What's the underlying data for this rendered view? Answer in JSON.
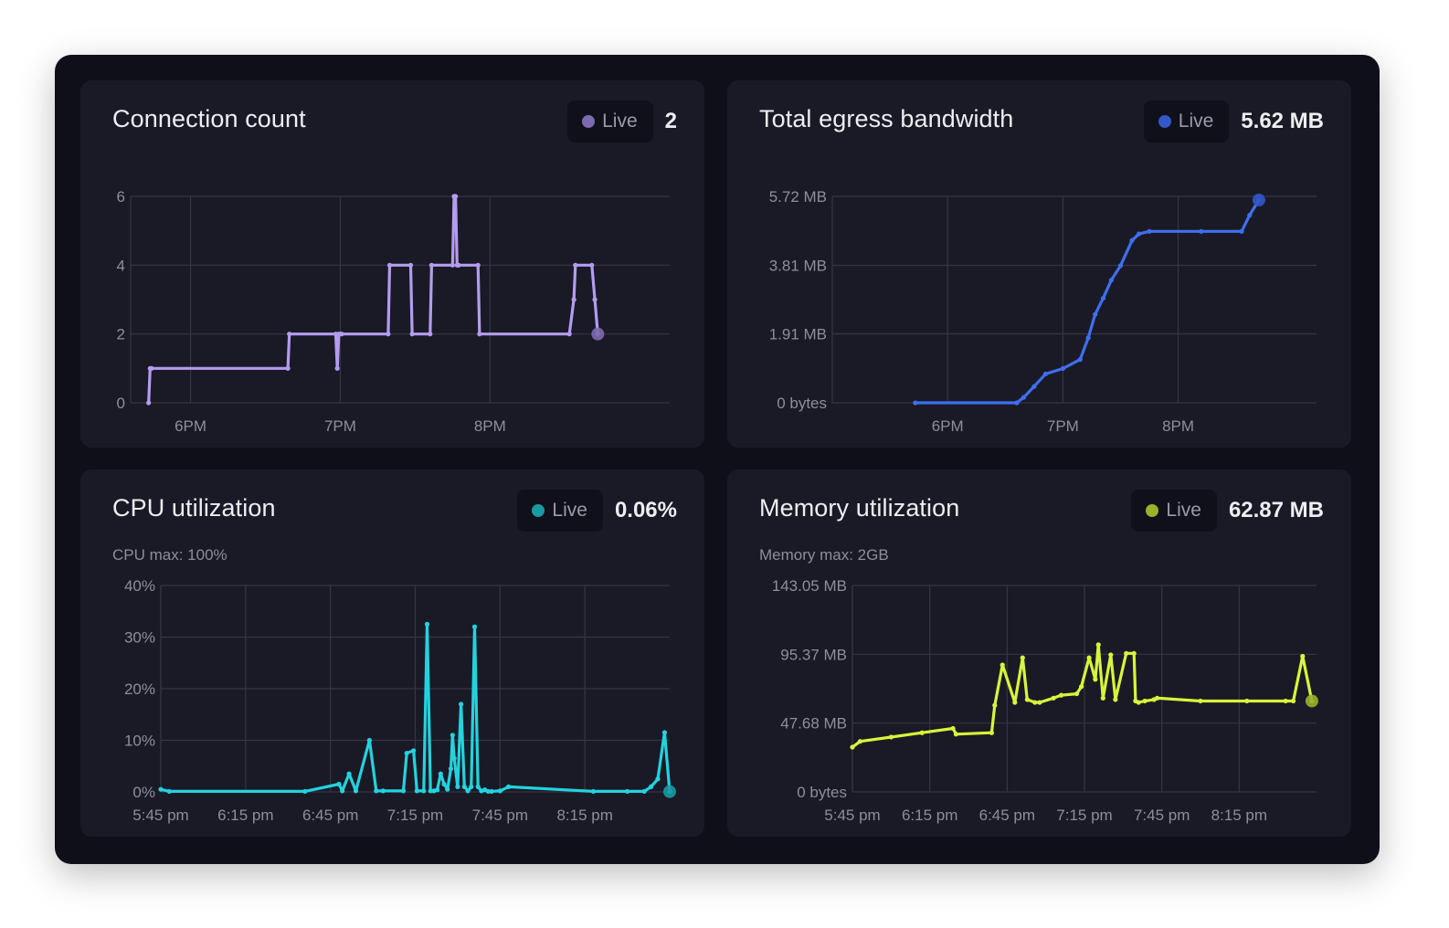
{
  "live_label": "Live",
  "chart_data": [
    {
      "type": "line",
      "title": "Connection count",
      "current_value": "2",
      "color": "#b49cf0",
      "dot_color": "#7d6bb0",
      "subtitle": "",
      "ylim": [
        0,
        6
      ],
      "yticks": [
        {
          "v": 0,
          "label": "0"
        },
        {
          "v": 2,
          "label": "2"
        },
        {
          "v": 4,
          "label": "4"
        },
        {
          "v": 6,
          "label": "6"
        }
      ],
      "xlim": [
        17.6,
        21.2
      ],
      "xticks": [
        {
          "v": 18,
          "label": "6PM"
        },
        {
          "v": 19,
          "label": "7PM"
        },
        {
          "v": 20,
          "label": "8PM"
        }
      ],
      "x": [
        17.72,
        17.73,
        17.74,
        18.65,
        18.66,
        18.97,
        18.98,
        18.99,
        19.0,
        19.01,
        19.32,
        19.33,
        19.47,
        19.48,
        19.6,
        19.61,
        19.75,
        19.76,
        19.77,
        19.78,
        19.79,
        19.92,
        19.93,
        20.53,
        20.56,
        20.57,
        20.68,
        20.7,
        20.72
      ],
      "y": [
        0,
        1,
        1,
        1,
        2,
        2,
        1,
        2,
        2,
        2,
        2,
        4,
        4,
        2,
        2,
        4,
        4,
        6,
        6,
        4,
        4,
        4,
        2,
        2,
        3,
        4,
        4,
        3,
        2
      ]
    },
    {
      "type": "line",
      "title": "Total egress bandwidth",
      "current_value": "5.62 MB",
      "color": "#3f6ff0",
      "dot_color": "#3356c8",
      "subtitle": "",
      "ylim": [
        0,
        5.72
      ],
      "yticks": [
        {
          "v": 0,
          "label": "0 bytes"
        },
        {
          "v": 1.91,
          "label": "1.91 MB"
        },
        {
          "v": 3.81,
          "label": "3.81 MB"
        },
        {
          "v": 5.72,
          "label": "5.72 MB"
        }
      ],
      "xlim": [
        17.0,
        21.2
      ],
      "xticks": [
        {
          "v": 18,
          "label": "6PM"
        },
        {
          "v": 19,
          "label": "7PM"
        },
        {
          "v": 20,
          "label": "8PM"
        }
      ],
      "x": [
        17.72,
        18.6,
        18.66,
        18.75,
        18.85,
        19.0,
        19.15,
        19.22,
        19.28,
        19.35,
        19.42,
        19.5,
        19.6,
        19.66,
        19.75,
        20.2,
        20.55,
        20.62,
        20.7
      ],
      "y": [
        0,
        0,
        0.15,
        0.45,
        0.8,
        0.95,
        1.2,
        1.8,
        2.45,
        2.9,
        3.4,
        3.8,
        4.5,
        4.68,
        4.75,
        4.75,
        4.75,
        5.2,
        5.62
      ]
    },
    {
      "type": "line",
      "title": "CPU utilization",
      "current_value": "0.06%",
      "color": "#22d3df",
      "dot_color": "#1a9aa3",
      "subtitle": "CPU max: 100%",
      "ylim": [
        0,
        40
      ],
      "yticks": [
        {
          "v": 0,
          "label": "0%"
        },
        {
          "v": 10,
          "label": "10%"
        },
        {
          "v": 20,
          "label": "20%"
        },
        {
          "v": 30,
          "label": "30%"
        },
        {
          "v": 40,
          "label": "40%"
        }
      ],
      "xlim": [
        17.75,
        20.75
      ],
      "xticks": [
        {
          "v": 17.75,
          "label": "5:45 pm"
        },
        {
          "v": 18.25,
          "label": "6:15 pm"
        },
        {
          "v": 18.75,
          "label": "6:45 pm"
        },
        {
          "v": 19.25,
          "label": "7:15 pm"
        },
        {
          "v": 19.75,
          "label": "7:45 pm"
        },
        {
          "v": 20.25,
          "label": "8:15 pm"
        }
      ],
      "x": [
        17.75,
        17.8,
        18.6,
        18.8,
        18.82,
        18.86,
        18.9,
        18.98,
        19.02,
        19.06,
        19.18,
        19.2,
        19.24,
        19.26,
        19.3,
        19.32,
        19.34,
        19.36,
        19.38,
        19.4,
        19.42,
        19.44,
        19.46,
        19.47,
        19.48,
        19.5,
        19.52,
        19.54,
        19.56,
        19.58,
        19.6,
        19.62,
        19.64,
        19.66,
        19.68,
        19.7,
        19.75,
        19.8,
        20.3,
        20.5,
        20.6,
        20.64,
        20.68,
        20.72,
        20.75
      ],
      "y": [
        0.5,
        0.1,
        0.1,
        1.5,
        0.2,
        3.5,
        0.2,
        10,
        0.2,
        0.2,
        0.2,
        7.5,
        8,
        0.2,
        0.2,
        32.5,
        0.2,
        0.2,
        0.4,
        3.5,
        1.5,
        0.5,
        4.5,
        11,
        6.5,
        1,
        17,
        1,
        0.2,
        1,
        32,
        1,
        0.2,
        0.4,
        0.1,
        0.1,
        0.2,
        1,
        0.1,
        0.1,
        0.1,
        1,
        2.5,
        11.5,
        0.06
      ]
    },
    {
      "type": "line",
      "title": "Memory utilization",
      "current_value": "62.87 MB",
      "color": "#d9f53a",
      "dot_color": "#9ab12a",
      "subtitle": "Memory max: 2GB",
      "ylim": [
        0,
        143.05
      ],
      "yticks": [
        {
          "v": 0,
          "label": "0 bytes"
        },
        {
          "v": 47.68,
          "label": "47.68 MB"
        },
        {
          "v": 95.37,
          "label": "95.37 MB"
        },
        {
          "v": 143.05,
          "label": "143.05 MB"
        }
      ],
      "xlim": [
        17.75,
        20.75
      ],
      "xticks": [
        {
          "v": 17.75,
          "label": "5:45 pm"
        },
        {
          "v": 18.25,
          "label": "6:15 pm"
        },
        {
          "v": 18.75,
          "label": "6:45 pm"
        },
        {
          "v": 19.25,
          "label": "7:15 pm"
        },
        {
          "v": 19.75,
          "label": "7:45 pm"
        },
        {
          "v": 20.25,
          "label": "8:15 pm"
        }
      ],
      "x": [
        17.75,
        17.8,
        18.0,
        18.2,
        18.4,
        18.42,
        18.65,
        18.67,
        18.72,
        18.8,
        18.85,
        18.88,
        18.93,
        18.96,
        19.05,
        19.1,
        19.2,
        19.23,
        19.28,
        19.32,
        19.34,
        19.37,
        19.42,
        19.45,
        19.52,
        19.57,
        19.58,
        19.6,
        19.64,
        19.7,
        19.72,
        20.0,
        20.3,
        20.55,
        20.6,
        20.66,
        20.72
      ],
      "y": [
        31,
        35,
        38,
        41,
        44,
        40,
        41,
        60,
        88,
        62,
        93,
        64,
        62,
        62,
        65,
        67,
        68,
        73,
        93,
        78,
        102,
        65,
        95,
        64,
        96,
        96,
        63,
        62,
        63,
        64,
        65,
        63,
        63,
        63,
        63,
        94,
        63
      ]
    }
  ]
}
